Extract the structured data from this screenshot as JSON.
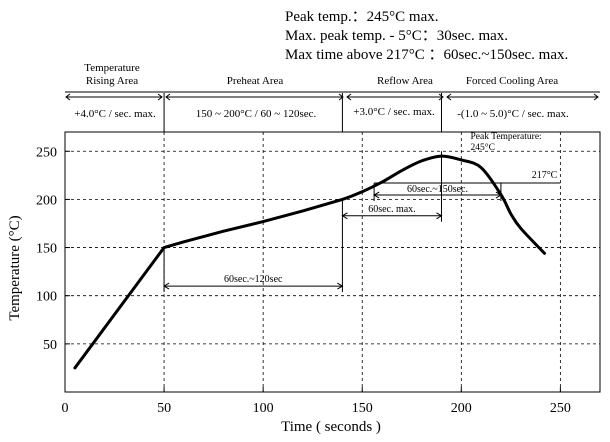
{
  "spec": {
    "lines": [
      "Peak temp.：245°C max.",
      "Max. peak temp. - 5°C：30sec. max.",
      "Max time above 217°C ：60sec.~150sec. max."
    ]
  },
  "zones": [
    {
      "title_lines": [
        "Temperature",
        "Rising Area"
      ],
      "rate": "+4.0°C / sec. max."
    },
    {
      "title_lines": [
        "Preheat Area"
      ],
      "rate": "150 ~ 200°C / 60 ~ 120sec."
    },
    {
      "title_lines": [
        "Reflow Area"
      ],
      "rate": "+3.0°C / sec. max."
    },
    {
      "title_lines": [
        "Forced Cooling Area"
      ],
      "rate": "-(1.0 ~ 5.0)°C / sec. max."
    }
  ],
  "chart_data": {
    "type": "line",
    "xlabel": "Time ( seconds )",
    "ylabel": "Temperature (°C)",
    "xlim": [
      0,
      270
    ],
    "ylim": [
      0,
      270
    ],
    "x_ticks": [
      0,
      50,
      100,
      150,
      200,
      250
    ],
    "y_ticks": [
      50,
      100,
      150,
      200,
      250
    ],
    "grid": true,
    "grid_style": "dashed",
    "zone_boundaries_x": [
      50,
      140,
      190
    ],
    "series": [
      {
        "x": [
          5,
          50,
          60,
          80,
          100,
          120,
          140,
          150,
          160,
          170,
          180,
          190,
          200,
          210,
          220,
          225,
          230,
          242
        ],
        "y": [
          25,
          150,
          156,
          167,
          177,
          188,
          200,
          208,
          218,
          230,
          240,
          245,
          241,
          233,
          205,
          185,
          170,
          144
        ]
      }
    ],
    "annotations": [
      {
        "label": "60sec.~120sec",
        "x_from": 50,
        "x_to": 140,
        "y": 110
      },
      {
        "label": "60sec.~150sec.",
        "x_from": 156,
        "x_to": 220,
        "y": 217
      },
      {
        "label": "60sec. max.",
        "x_from": 140,
        "x_to": 190,
        "y": 183
      },
      {
        "label_lines": [
          "Peak Temperature:",
          "245°C"
        ],
        "x": 188,
        "y": 270
      },
      {
        "label": "217°C",
        "x": 250,
        "y": 217
      }
    ]
  }
}
